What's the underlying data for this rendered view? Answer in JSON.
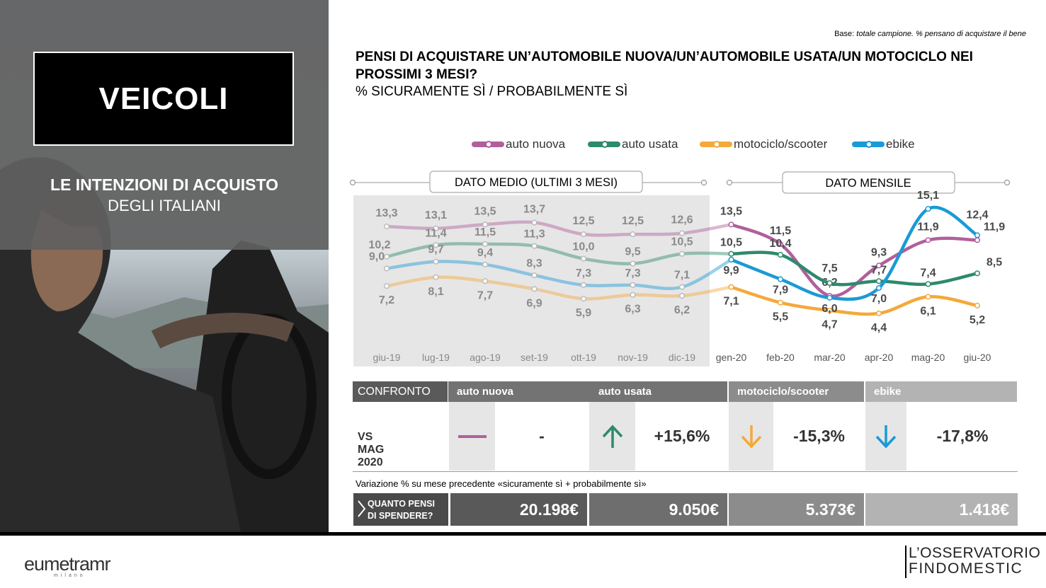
{
  "left_panel": {
    "title": "VEICOLI",
    "subtitle_line1": "LE INTENZIONI DI ACQUISTO",
    "subtitle_line2": "DEGLI ITALIANI"
  },
  "header": {
    "base_prefix": "Base: ",
    "base_text": "totale campione. % pensano di acquistare il bene",
    "title": "PENSI DI ACQUISTARE UN’AUTOMOBILE NUOVA/UN’AUTOMOBILE USATA/UN MOTOCICLO NEI PROSSIMI 3 MESI?",
    "subtitle": "% SICURAMENTE SÌ / PROBABILMENTE SÌ"
  },
  "chart_data": {
    "type": "line",
    "categories": [
      "giu-19",
      "lug-19",
      "ago-19",
      "set-19",
      "ott-19",
      "nov-19",
      "dic-19",
      "gen-20",
      "feb-20",
      "mar-20",
      "apr-20",
      "mag-20",
      "giu-20"
    ],
    "period_labels": {
      "average": "DATO MEDIO (ULTIMI 3 MESI)",
      "monthly": "DATO MENSILE"
    },
    "series": [
      {
        "name": "auto nuova",
        "color": "#b0609c",
        "values": [
          13.3,
          13.1,
          13.5,
          13.7,
          12.5,
          12.5,
          12.6,
          13.5,
          11.5,
          6.2,
          9.3,
          11.9,
          11.9
        ],
        "labels": [
          "13,3",
          "13,1",
          "13,5",
          "13,7",
          "12,5",
          "12,5",
          "12,6",
          "13,5",
          "11,5",
          "6,2",
          "9,3",
          "11,9",
          "11,9"
        ]
      },
      {
        "name": "auto usata",
        "color": "#2e8a6c",
        "values": [
          10.2,
          11.4,
          11.5,
          11.3,
          10.0,
          9.5,
          10.5,
          10.5,
          10.4,
          7.5,
          7.7,
          7.4,
          8.5
        ],
        "labels": [
          "10,2",
          "11,4",
          "11,5",
          "11,3",
          "10,0",
          "9,5",
          "10,5",
          "10,5",
          "10,4",
          "7,5",
          "7,7",
          "7,4",
          "8,5"
        ]
      },
      {
        "name": "motociclo/scooter",
        "color": "#f4a93a",
        "values": [
          7.2,
          8.1,
          7.7,
          6.9,
          5.9,
          6.3,
          6.2,
          7.1,
          5.5,
          4.7,
          4.4,
          6.1,
          5.2
        ],
        "labels": [
          "7,2",
          "8,1",
          "7,7",
          "6,9",
          "5,9",
          "6,3",
          "6,2",
          "7,1",
          "5,5",
          "4,7",
          "4,4",
          "6,1",
          "5,2"
        ]
      },
      {
        "name": "ebike",
        "color": "#1a9ad6",
        "values": [
          9.0,
          9.7,
          9.4,
          8.3,
          7.3,
          7.3,
          7.1,
          9.9,
          7.9,
          6.0,
          7.0,
          15.1,
          12.4
        ],
        "labels": [
          "9,0",
          "9,7",
          "9,4",
          "8,3",
          "7,3",
          "7,3",
          "7,1",
          "9,9",
          "7,9",
          "6,0",
          "7,0",
          "15,1",
          "12,4"
        ]
      }
    ],
    "ylim": [
      3,
      16
    ]
  },
  "comparison": {
    "header_label": "CONFRONTO",
    "row_label": "VS MAG 2020",
    "columns": [
      {
        "name": "auto nuova",
        "color": "#b0609c",
        "trend": "flat",
        "value": "-"
      },
      {
        "name": "auto usata",
        "color": "#2e8a6c",
        "trend": "up",
        "value": "+15,6%"
      },
      {
        "name": "motociclo/scooter",
        "color": "#f4a93a",
        "trend": "down",
        "value": "-15,3%"
      },
      {
        "name": "ebike",
        "color": "#1a9ad6",
        "trend": "down",
        "value": "-17,8%"
      }
    ],
    "variation_note": "Variazione % su mese precedente «sicuramente sì + probabilmente sì»",
    "spend_label_line1": "QUANTO PENSI",
    "spend_label_line2": "DI SPENDERE?",
    "spend_values": [
      "20.198€",
      "9.050€",
      "5.373€",
      "1.418€"
    ]
  },
  "footer": {
    "logo_left": "eumetramr",
    "logo_left_small": "milano",
    "logo_right_line1": "L’OSSERVATORIO",
    "logo_right_line2": "FINDOMESTIC"
  }
}
